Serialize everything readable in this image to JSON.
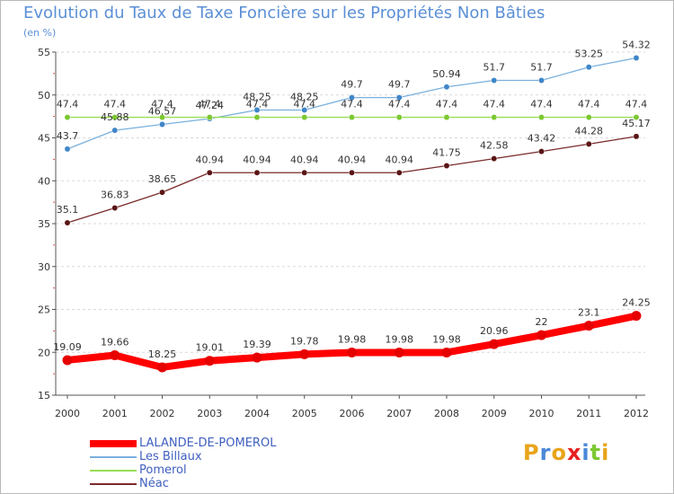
{
  "header": {
    "title": "Evolution du Taux de Taxe Foncière sur les Propriétés Non Bâties",
    "subtitle": "(en %)"
  },
  "colors": {
    "title": "#5b8fd6",
    "gridline": "#d9d9d9",
    "axis": "#555555",
    "legend_text": "#3f5fc0"
  },
  "chart_data": {
    "type": "line",
    "title": "Evolution du Taux de Taxe Foncière sur les Propriétés Non Bâties",
    "subtitle": "(en %)",
    "xlabel": "",
    "ylabel": "",
    "x": [
      "2000",
      "2001",
      "2002",
      "2003",
      "2004",
      "2005",
      "2006",
      "2007",
      "2008",
      "2009",
      "2010",
      "2011",
      "2012"
    ],
    "ylim": [
      15,
      55
    ],
    "yticks": [
      15,
      20,
      25,
      30,
      35,
      40,
      45,
      50,
      55
    ],
    "grid": "horizontal dashed",
    "legend_position": "bottom-left",
    "series": [
      {
        "name": "LALANDE-DE-POMEROL",
        "color": "#ff0000",
        "marker": "#e60000",
        "values": [
          19.09,
          19.66,
          18.25,
          19.01,
          19.39,
          19.78,
          19.98,
          19.98,
          19.98,
          20.96,
          22,
          23.1,
          24.25
        ],
        "labels": [
          "19.09",
          "19.66",
          "18.25",
          "19.01",
          "19.39",
          "19.78",
          "19.98",
          "19.98",
          "19.98",
          "20.96",
          "22",
          "23.1",
          "24.25"
        ]
      },
      {
        "name": "Les Billaux",
        "color": "#7ab0dd",
        "marker": "#3f86c8",
        "values": [
          43.7,
          45.88,
          46.57,
          47.24,
          48.25,
          48.25,
          49.7,
          49.7,
          50.94,
          51.7,
          51.7,
          53.25,
          54.32
        ],
        "labels": [
          "43.7",
          "45.88",
          "46.57",
          "47.24",
          "48.25",
          "48.25",
          "49.7",
          "49.7",
          "50.94",
          "51.7",
          "51.7",
          "53.25",
          "54.32"
        ]
      },
      {
        "name": "Pomerol",
        "color": "#99dd55",
        "marker": "#7cc832",
        "values": [
          47.4,
          47.4,
          47.4,
          47.4,
          47.4,
          47.4,
          47.4,
          47.4,
          47.4,
          47.4,
          47.4,
          47.4,
          47.4
        ],
        "labels": [
          "47.4",
          "47.4",
          "47.4",
          "47.4",
          "47.4",
          "47.4",
          "47.4",
          "47.4",
          "47.4",
          "47.4",
          "47.4",
          "47.4",
          "47.4"
        ]
      },
      {
        "name": "Néac",
        "color": "#7a2a2a",
        "marker": "#5a1515",
        "values": [
          35.1,
          36.83,
          38.65,
          40.94,
          40.94,
          40.94,
          40.94,
          40.94,
          41.75,
          42.58,
          43.42,
          44.28,
          45.17
        ],
        "labels": [
          "35.1",
          "36.83",
          "38.65",
          "40.94",
          "40.94",
          "40.94",
          "40.94",
          "40.94",
          "41.75",
          "42.58",
          "43.42",
          "44.28",
          "45.17"
        ]
      }
    ]
  },
  "legend": [
    {
      "label": "LALANDE-DE-POMEROL",
      "color": "#ff0000"
    },
    {
      "label": "Les Billaux",
      "color": "#7ab0dd"
    },
    {
      "label": "Pomerol",
      "color": "#99dd55"
    },
    {
      "label": "Néac",
      "color": "#7a2a2a"
    }
  ],
  "logo": {
    "text": "Proxiti",
    "letter_colors": [
      "#e8a41a",
      "#4a88d8",
      "#e8a41a",
      "#e82020",
      "#4a88d8",
      "#7cc832",
      "#e8a41a"
    ]
  }
}
